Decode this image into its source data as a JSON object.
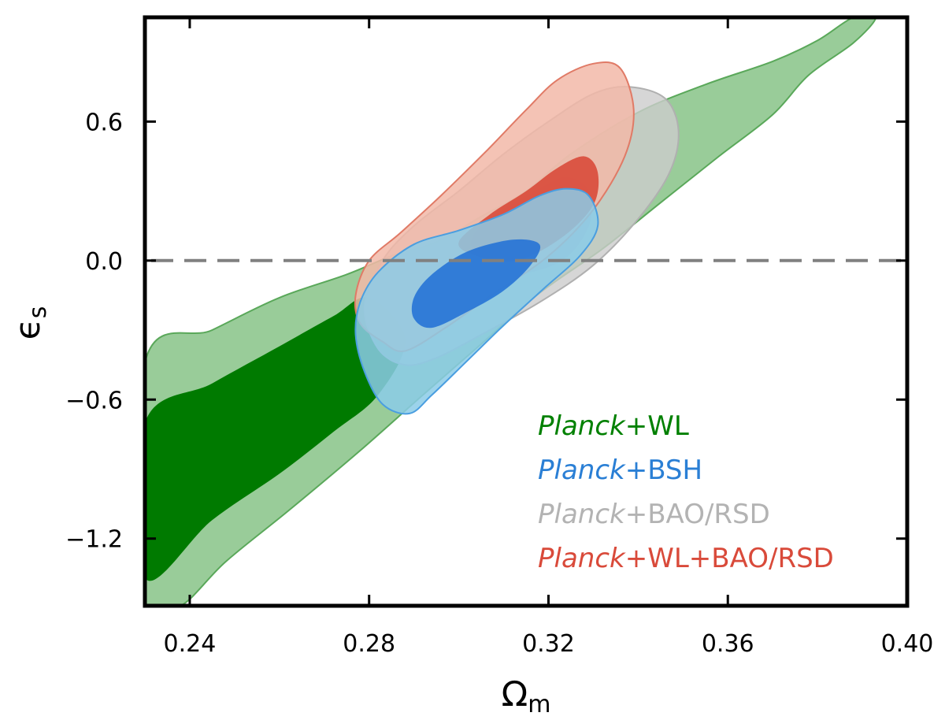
{
  "chart_data": {
    "type": "contour",
    "title": "",
    "xlabel": {
      "main": "Ω",
      "sub": "m"
    },
    "ylabel": {
      "main": "ϵ",
      "sub": "s"
    },
    "xlim": [
      0.23,
      0.4
    ],
    "ylim": [
      -1.49,
      1.05
    ],
    "xticks": [
      0.24,
      0.28,
      0.32,
      0.36,
      0.4
    ],
    "xtick_labels": [
      "0.24",
      "0.28",
      "0.32",
      "0.36",
      "0.40"
    ],
    "yticks": [
      0.6,
      0.0,
      -0.6,
      -1.2
    ],
    "ytick_labels": [
      "0.6",
      "0.0",
      "−0.6",
      "−1.2"
    ],
    "reference_line": {
      "y": 0.0,
      "style": "dashed",
      "color": "#808080"
    },
    "legend_position": "bottom-right",
    "series": [
      {
        "name": "Planck+WL",
        "legend_prefix": "Planck",
        "legend_suffix": "+WL",
        "color": "#008000",
        "fill_68": "#007a00",
        "fill_95": "#99cc99",
        "edge": "#5aa85a",
        "contour_95": [
          [
            0.23,
            -0.44
          ],
          [
            0.245,
            -0.3
          ],
          [
            0.26,
            -0.16
          ],
          [
            0.275,
            -0.06
          ],
          [
            0.285,
            0.02
          ],
          [
            0.295,
            0.08
          ],
          [
            0.305,
            0.19
          ],
          [
            0.315,
            0.3
          ],
          [
            0.325,
            0.46
          ],
          [
            0.34,
            0.64
          ],
          [
            0.355,
            0.76
          ],
          [
            0.37,
            0.86
          ],
          [
            0.38,
            0.95
          ],
          [
            0.388,
            1.05
          ],
          [
            0.393,
            1.05
          ],
          [
            0.388,
            0.94
          ],
          [
            0.378,
            0.8
          ],
          [
            0.37,
            0.63
          ],
          [
            0.358,
            0.45
          ],
          [
            0.345,
            0.25
          ],
          [
            0.332,
            0.05
          ],
          [
            0.318,
            -0.14
          ],
          [
            0.305,
            -0.36
          ],
          [
            0.292,
            -0.58
          ],
          [
            0.278,
            -0.82
          ],
          [
            0.262,
            -1.08
          ],
          [
            0.248,
            -1.3
          ],
          [
            0.238,
            -1.49
          ],
          [
            0.23,
            -1.49
          ]
        ],
        "contour_68": [
          [
            0.23,
            -0.7
          ],
          [
            0.245,
            -0.53
          ],
          [
            0.26,
            -0.37
          ],
          [
            0.272,
            -0.24
          ],
          [
            0.28,
            -0.16
          ],
          [
            0.288,
            -0.34
          ],
          [
            0.282,
            -0.58
          ],
          [
            0.272,
            -0.74
          ],
          [
            0.26,
            -0.92
          ],
          [
            0.245,
            -1.12
          ],
          [
            0.23,
            -1.37
          ]
        ]
      },
      {
        "name": "Planck+BSH",
        "legend_prefix": "Planck",
        "legend_suffix": "+BSH",
        "color": "#2a7fd5",
        "fill_68": "#1f6fd6",
        "fill_95": "#8bcbe8",
        "edge": "#4a9ee0",
        "contour_95": [
          [
            0.278,
            -0.18
          ],
          [
            0.282,
            -0.05
          ],
          [
            0.29,
            0.07
          ],
          [
            0.3,
            0.13
          ],
          [
            0.31,
            0.2
          ],
          [
            0.318,
            0.28
          ],
          [
            0.324,
            0.31
          ],
          [
            0.329,
            0.28
          ],
          [
            0.331,
            0.15
          ],
          [
            0.327,
            0.02
          ],
          [
            0.319,
            -0.12
          ],
          [
            0.31,
            -0.28
          ],
          [
            0.302,
            -0.43
          ],
          [
            0.294,
            -0.58
          ],
          [
            0.289,
            -0.66
          ],
          [
            0.283,
            -0.62
          ],
          [
            0.279,
            -0.48
          ],
          [
            0.277,
            -0.32
          ]
        ],
        "contour_68": [
          [
            0.29,
            -0.16
          ],
          [
            0.294,
            -0.06
          ],
          [
            0.302,
            0.04
          ],
          [
            0.312,
            0.09
          ],
          [
            0.318,
            0.07
          ],
          [
            0.316,
            -0.02
          ],
          [
            0.31,
            -0.13
          ],
          [
            0.302,
            -0.22
          ],
          [
            0.294,
            -0.29
          ],
          [
            0.29,
            -0.25
          ]
        ]
      },
      {
        "name": "Planck+BAO/RSD",
        "legend_prefix": "Planck",
        "legend_suffix": "+BAO/RSD",
        "color": "#b3b3b3",
        "fill_68": "#b8b8b8",
        "fill_95": "#cccccc",
        "edge": "#b0b0b0",
        "contour_95": [
          [
            0.279,
            -0.2
          ],
          [
            0.283,
            0.0
          ],
          [
            0.29,
            0.15
          ],
          [
            0.3,
            0.3
          ],
          [
            0.31,
            0.46
          ],
          [
            0.32,
            0.6
          ],
          [
            0.33,
            0.72
          ],
          [
            0.338,
            0.75
          ],
          [
            0.346,
            0.7
          ],
          [
            0.349,
            0.56
          ],
          [
            0.347,
            0.38
          ],
          [
            0.34,
            0.18
          ],
          [
            0.33,
            -0.02
          ],
          [
            0.318,
            -0.18
          ],
          [
            0.305,
            -0.32
          ],
          [
            0.295,
            -0.42
          ],
          [
            0.288,
            -0.45
          ],
          [
            0.282,
            -0.38
          ]
        ],
        "contour_68": [
          [
            0.303,
            0.1
          ],
          [
            0.31,
            0.22
          ],
          [
            0.318,
            0.31
          ],
          [
            0.324,
            0.36
          ],
          [
            0.329,
            0.3
          ],
          [
            0.329,
            0.15
          ],
          [
            0.323,
            0.0
          ],
          [
            0.312,
            -0.06
          ],
          [
            0.305,
            0.0
          ]
        ]
      },
      {
        "name": "Planck+WL+BAO/RSD",
        "legend_prefix": "Planck",
        "legend_suffix": "+WL+BAO/RSD",
        "color": "#d94a3a",
        "fill_68": "#d94a3a",
        "fill_95": "#f2b8a8",
        "edge": "#e07a66",
        "contour_95": [
          [
            0.277,
            -0.15
          ],
          [
            0.28,
            0.0
          ],
          [
            0.287,
            0.12
          ],
          [
            0.296,
            0.28
          ],
          [
            0.306,
            0.47
          ],
          [
            0.315,
            0.65
          ],
          [
            0.322,
            0.78
          ],
          [
            0.33,
            0.85
          ],
          [
            0.336,
            0.83
          ],
          [
            0.339,
            0.65
          ],
          [
            0.337,
            0.45
          ],
          [
            0.33,
            0.22
          ],
          [
            0.32,
            0.02
          ],
          [
            0.308,
            -0.14
          ],
          [
            0.297,
            -0.29
          ],
          [
            0.288,
            -0.39
          ],
          [
            0.283,
            -0.35
          ],
          [
            0.278,
            -0.27
          ]
        ],
        "contour_68": [
          [
            0.3,
            0.08
          ],
          [
            0.307,
            0.2
          ],
          [
            0.315,
            0.3
          ],
          [
            0.322,
            0.4
          ],
          [
            0.328,
            0.45
          ],
          [
            0.331,
            0.38
          ],
          [
            0.33,
            0.24
          ],
          [
            0.323,
            0.1
          ],
          [
            0.313,
            0.0
          ],
          [
            0.304,
            0.02
          ]
        ]
      }
    ]
  }
}
